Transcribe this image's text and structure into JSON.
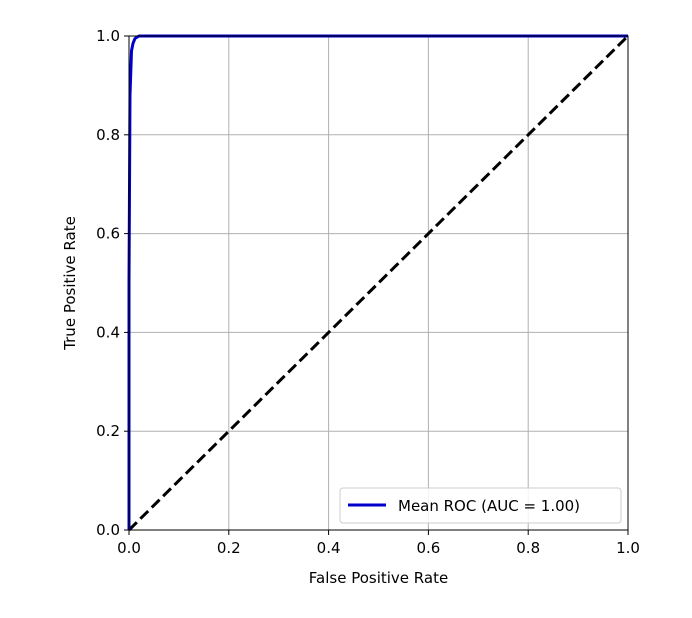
{
  "chart_data": {
    "type": "line",
    "title": "",
    "xlabel": "False Positive Rate",
    "ylabel": "True Positive Rate",
    "xlim": [
      0.0,
      1.0
    ],
    "ylim": [
      0.0,
      1.0
    ],
    "xticks": [
      0.0,
      0.2,
      0.4,
      0.6,
      0.8,
      1.0
    ],
    "yticks": [
      0.0,
      0.2,
      0.4,
      0.6,
      0.8,
      1.0
    ],
    "xtick_labels": [
      "0.0",
      "0.2",
      "0.4",
      "0.6",
      "0.8",
      "1.0"
    ],
    "ytick_labels": [
      "0.0",
      "0.2",
      "0.4",
      "0.6",
      "0.8",
      "1.0"
    ],
    "grid": true,
    "legend_position": "bottom-right",
    "series": [
      {
        "name": "Mean ROC (AUC = 1.00)",
        "color": "#0000cc",
        "style": "solid",
        "x": [
          0.0,
          0.0,
          0.002,
          0.005,
          0.008,
          0.012,
          0.02,
          0.05,
          0.1,
          0.3,
          0.5,
          0.7,
          0.9,
          1.0
        ],
        "y": [
          0.0,
          0.5,
          0.88,
          0.97,
          0.985,
          0.995,
          1.0,
          1.0,
          1.0,
          1.0,
          1.0,
          1.0,
          1.0,
          1.0
        ]
      },
      {
        "color": "#000000",
        "style": "dashed",
        "x": [
          0.0,
          1.0
        ],
        "y": [
          0.0,
          1.0
        ]
      }
    ]
  }
}
